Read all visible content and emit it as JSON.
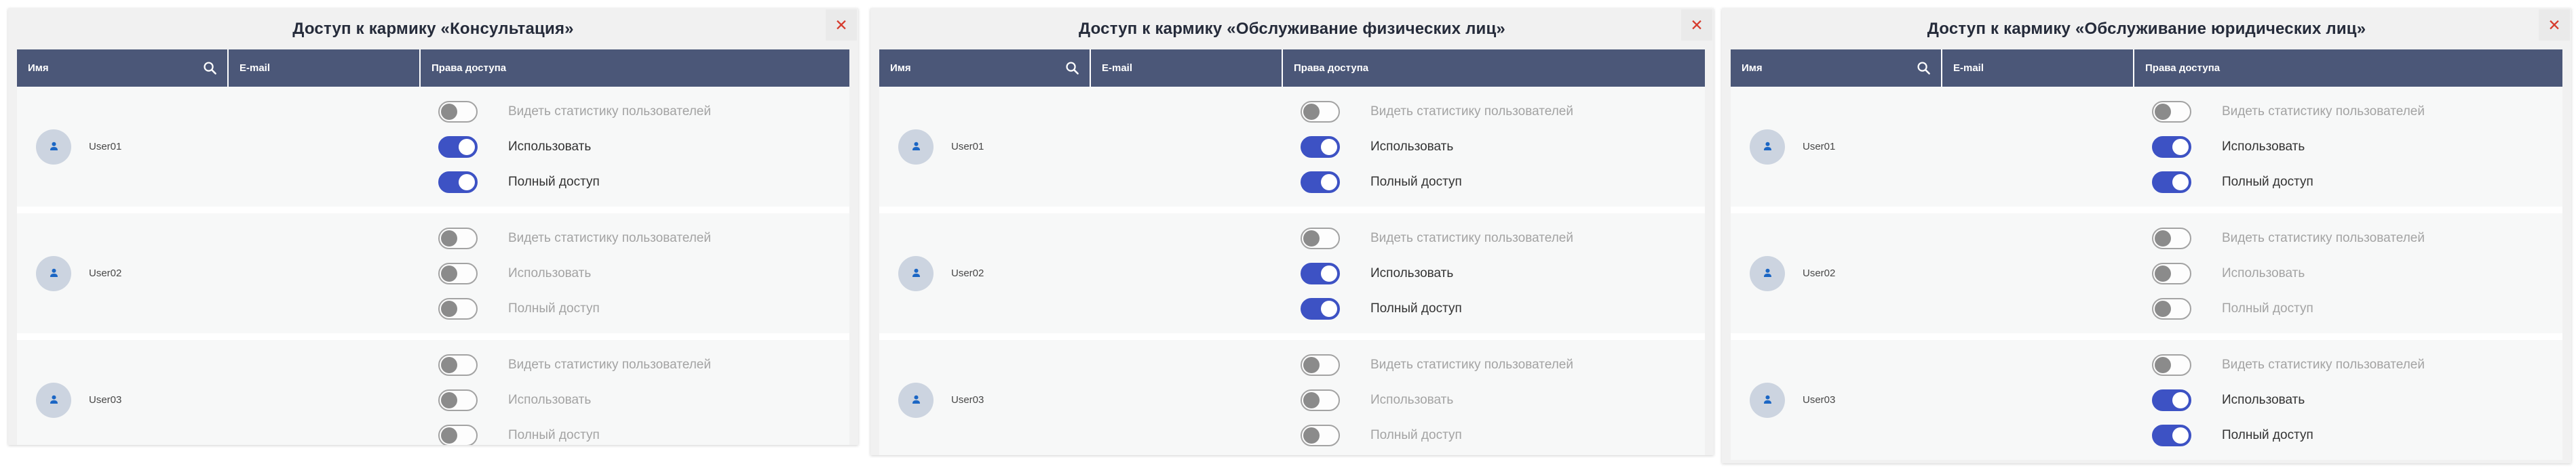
{
  "icons": {
    "close": "✕",
    "search": "magnifier",
    "user": "person-silhouette"
  },
  "colors": {
    "modal_bg": "#f1f1f1",
    "table_header_bg": "#4b5778",
    "row_bg": "#f7f8f8",
    "toggle_on": "#3d52c4",
    "toggle_off_knob": "#8b8b8b",
    "close_x": "#d63a2c",
    "avatar_bg": "#ccd4e0",
    "avatar_icon": "#1b66c4",
    "title_text": "#252b3a",
    "label_on": "#333333",
    "label_off": "#a3a3a3"
  },
  "columns": {
    "name": "Имя",
    "email": "E-mail",
    "rights": "Права доступа"
  },
  "modals": [
    {
      "title": "Доступ к кармику «Консультация»",
      "rows": [
        {
          "user": "User01",
          "email": "",
          "toggles": [
            {
              "label": "Видеть статистику пользователей",
              "on": false
            },
            {
              "label": "Использовать",
              "on": true
            },
            {
              "label": "Полный доступ",
              "on": true
            }
          ]
        },
        {
          "user": "User02",
          "email": "",
          "toggles": [
            {
              "label": "Видеть статистику пользователей",
              "on": false
            },
            {
              "label": "Использовать",
              "on": false
            },
            {
              "label": "Полный доступ",
              "on": false
            }
          ]
        },
        {
          "user": "User03",
          "email": "",
          "toggles": [
            {
              "label": "Видеть статистику пользователей",
              "on": false
            },
            {
              "label": "Использовать",
              "on": false
            },
            {
              "label": "Полный доступ",
              "on": false
            }
          ]
        }
      ]
    },
    {
      "title": "Доступ к кармику «Обслуживание физических лиц»",
      "rows": [
        {
          "user": "User01",
          "email": "",
          "toggles": [
            {
              "label": "Видеть статистику пользователей",
              "on": false
            },
            {
              "label": "Использовать",
              "on": true
            },
            {
              "label": "Полный доступ",
              "on": true
            }
          ]
        },
        {
          "user": "User02",
          "email": "",
          "toggles": [
            {
              "label": "Видеть статистику пользователей",
              "on": false
            },
            {
              "label": "Использовать",
              "on": true
            },
            {
              "label": "Полный доступ",
              "on": true
            }
          ]
        },
        {
          "user": "User03",
          "email": "",
          "toggles": [
            {
              "label": "Видеть статистику пользователей",
              "on": false
            },
            {
              "label": "Использовать",
              "on": false
            },
            {
              "label": "Полный доступ",
              "on": false
            }
          ]
        }
      ]
    },
    {
      "title": "Доступ к кармику «Обслуживание юридических лиц»",
      "rows": [
        {
          "user": "User01",
          "email": "",
          "toggles": [
            {
              "label": "Видеть статистику пользователей",
              "on": false
            },
            {
              "label": "Использовать",
              "on": true
            },
            {
              "label": "Полный доступ",
              "on": true
            }
          ]
        },
        {
          "user": "User02",
          "email": "",
          "toggles": [
            {
              "label": "Видеть статистику пользователей",
              "on": false
            },
            {
              "label": "Использовать",
              "on": false
            },
            {
              "label": "Полный доступ",
              "on": false
            }
          ]
        },
        {
          "user": "User03",
          "email": "",
          "toggles": [
            {
              "label": "Видеть статистику пользователей",
              "on": false
            },
            {
              "label": "Использовать",
              "on": true
            },
            {
              "label": "Полный доступ",
              "on": true
            }
          ]
        }
      ]
    }
  ]
}
